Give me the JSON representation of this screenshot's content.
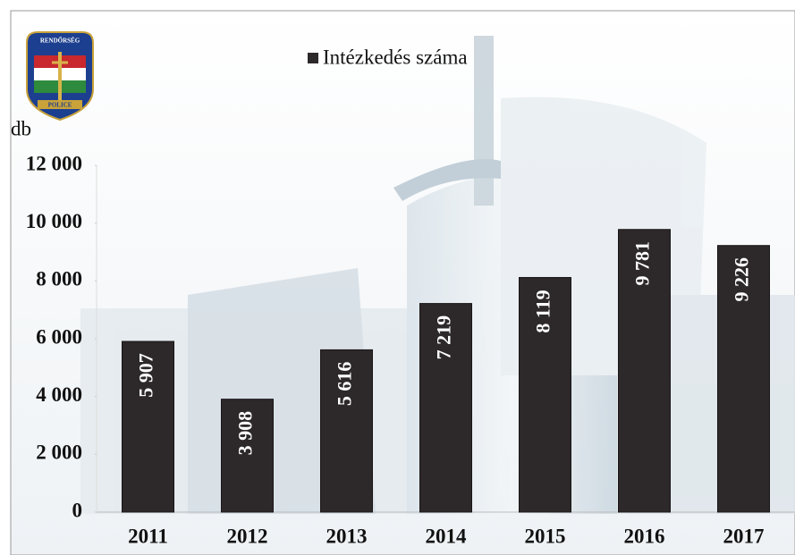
{
  "chart_data": {
    "type": "bar",
    "categories": [
      "2011",
      "2012",
      "2013",
      "2014",
      "2015",
      "2016",
      "2017"
    ],
    "series": [
      {
        "name": "Intézkedés száma",
        "color": "#2d2829",
        "values": [
          5907,
          3908,
          5616,
          7219,
          8119,
          9781,
          9226
        ],
        "value_labels": [
          "5 907",
          "3 908",
          "5 616",
          "7 219",
          "8 119",
          "9 781",
          "9 226"
        ]
      }
    ],
    "y_label": "db",
    "annotations": [
      "RENDŐRSÉG",
      "POLICE"
    ],
    "ylim": [
      0,
      12000
    ],
    "yticks": [
      {
        "value": 0,
        "label": "0"
      },
      {
        "value": 2000,
        "label": "2 000"
      },
      {
        "value": 4000,
        "label": "4 000"
      },
      {
        "value": 6000,
        "label": "6 000"
      },
      {
        "value": 8000,
        "label": "8 000"
      },
      {
        "value": 10000,
        "label": "10 000"
      },
      {
        "value": 12000,
        "label": "12 000"
      }
    ],
    "legend": "top",
    "grid": false
  }
}
